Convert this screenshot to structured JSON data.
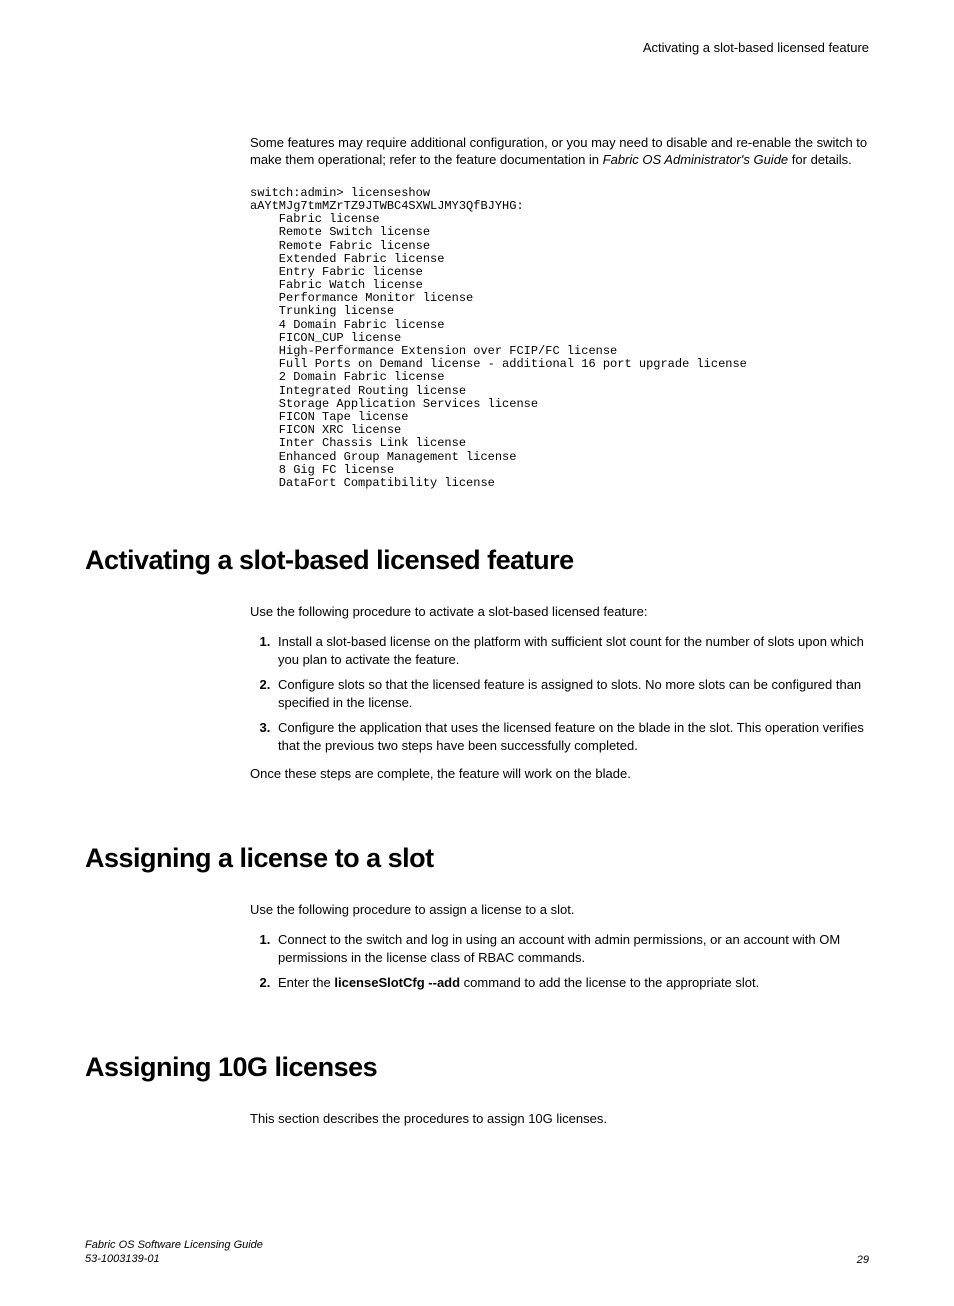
{
  "header": {
    "running_title": "Activating a slot-based licensed feature"
  },
  "intro": {
    "text_before_italic": "Some features may require additional configuration, or you may need to disable and re-enable the switch to make them operational; refer to the feature documentation in ",
    "italic_text": "Fabric OS Administrator's Guide",
    "text_after_italic": " for details."
  },
  "code": "switch:admin> licenseshow\naAYtMJg7tmMZrTZ9JTWBC4SXWLJMY3QfBJYHG:\n    Fabric license\n    Remote Switch license\n    Remote Fabric license\n    Extended Fabric license\n    Entry Fabric license\n    Fabric Watch license\n    Performance Monitor license\n    Trunking license\n    4 Domain Fabric license\n    FICON_CUP license\n    High-Performance Extension over FCIP/FC license\n    Full Ports on Demand license - additional 16 port upgrade license\n    2 Domain Fabric license\n    Integrated Routing license\n    Storage Application Services license\n    FICON Tape license\n    FICON XRC license\n    Inter Chassis Link license\n    Enhanced Group Management license\n    8 Gig FC license\n    DataFort Compatibility license",
  "section1": {
    "heading": "Activating a slot-based licensed feature",
    "intro": "Use the following procedure to activate a slot-based licensed feature:",
    "steps": [
      "Install a slot-based license on the platform with sufficient slot count for the number of slots upon which you plan to activate the feature.",
      "Configure slots so that the licensed feature is assigned to slots. No more slots can be configured than specified in the license.",
      "Configure the application that uses the licensed feature on the blade in the slot. This operation verifies that the previous two steps have been successfully completed."
    ],
    "outro": "Once these steps are complete, the feature will work on the blade."
  },
  "section2": {
    "heading": "Assigning a license to a slot",
    "intro": "Use the following procedure to assign a license to a slot.",
    "steps_prefix": [
      "Connect to the switch and log in using an account with admin permissions, or an account with OM permissions in the license class of RBAC commands."
    ],
    "step2_before_bold": "Enter the ",
    "step2_bold": "licenseSlotCfg --add",
    "step2_after_bold": " command to add the license to the appropriate slot."
  },
  "section3": {
    "heading": "Assigning 10G licenses",
    "intro": "This section describes the procedures to assign 10G licenses."
  },
  "footer": {
    "doc_title": "Fabric OS Software Licensing Guide",
    "doc_id": "53-1003139-01",
    "page_number": "29"
  }
}
